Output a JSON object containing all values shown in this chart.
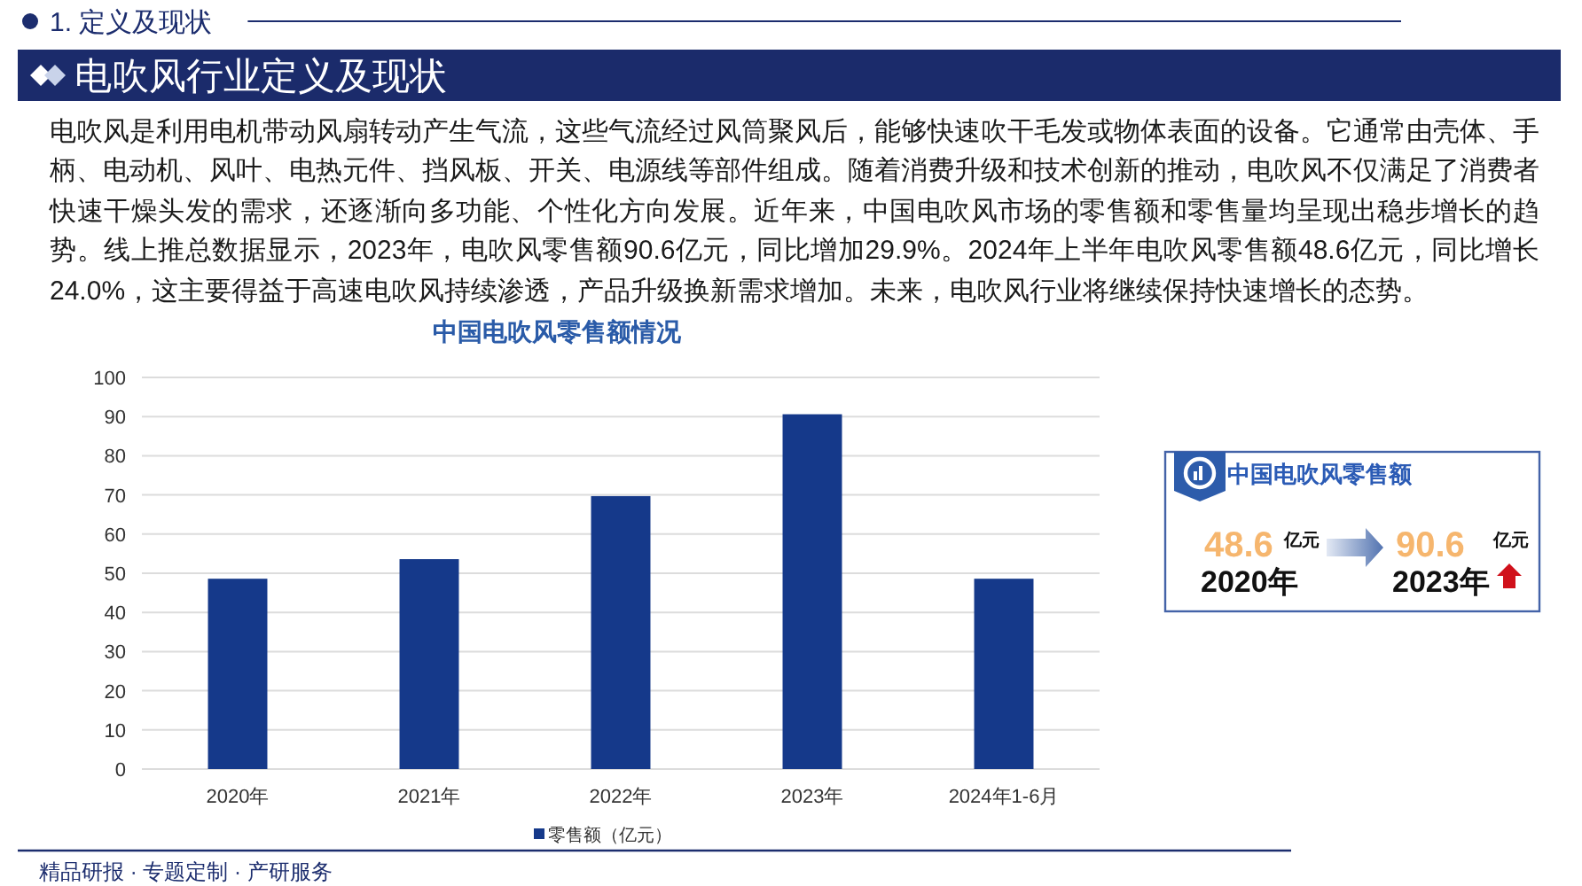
{
  "chart_data": [
    {
      "type": "other",
      "subtitle": "1. 定义及现状",
      "title": "电吹风行业定义及现状",
      "annotations": [
        "电吹风是利用电机带动风扇转动产生气流，这些气流经过风筒聚风后，能够快速吹干毛发或物体表面的设备。它通常由壳体、手柄、电动机、风叶、电热元件、挡风板、开关、电源线等部件组成。随着消费升级和技术创新的推动，电吹风不仅满足了消费者快速干燥头发的需求，还逐渐向多功能、个性化方向发展。近年来，中国电吹风市场的零售额和零售量均呈现出稳步增长的趋势。线上推总数据显示，2023年，电吹风零售额90.6亿元，同比增加29.9%。2024年上半年电吹风零售额48.6亿元，同比增长24.0%，这主要得益于高速电吹风持续渗透，产品升级换新需求增加。未来，电吹风行业将继续保持快速增长的态势。"
      ]
    },
    {
      "type": "bar",
      "title": "中国电吹风零售额情况",
      "categories": [
        "2020年",
        "2021年",
        "2022年",
        "2023年",
        "2024年1-6月"
      ],
      "series": [
        {
          "name": "零售额（亿元）",
          "color": "#15398a",
          "values": [
            48.6,
            53.6,
            69.7,
            90.6,
            48.6
          ]
        }
      ],
      "ylim": [
        0,
        100
      ],
      "yticks": [
        0,
        10,
        20,
        30,
        40,
        50,
        60,
        70,
        80,
        90,
        100
      ],
      "grid": "y",
      "legend": "bottom",
      "annotations": [
        "精品研报 · 专题定制 · 产研服务"
      ]
    },
    {
      "type": "other",
      "title": "中国电吹风零售额",
      "categories": [
        "2020年",
        "2023年"
      ],
      "values": [
        48.6,
        90.6
      ],
      "data_labels": true,
      "ylabel": "亿元"
    }
  ]
}
